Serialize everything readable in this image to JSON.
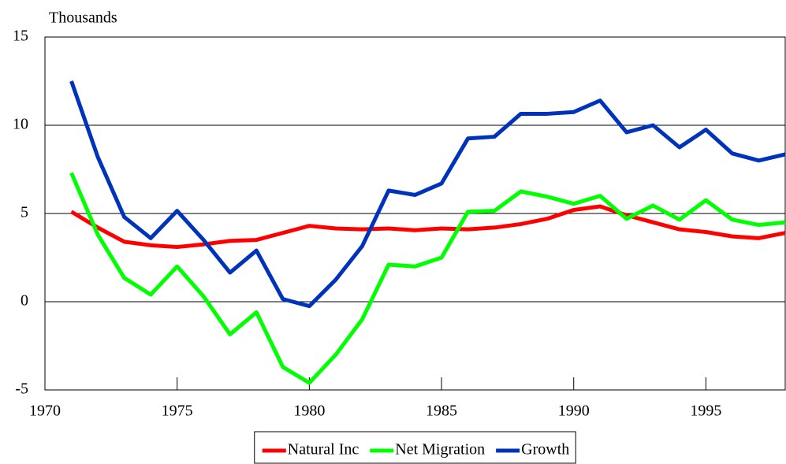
{
  "chart_data": {
    "type": "line",
    "y_label": "Thousands",
    "x": [
      1971,
      1972,
      1973,
      1974,
      1975,
      1976,
      1977,
      1978,
      1979,
      1980,
      1981,
      1982,
      1983,
      1984,
      1985,
      1986,
      1987,
      1988,
      1989,
      1990,
      1991,
      1992,
      1993,
      1994,
      1995,
      1996,
      1997,
      1998
    ],
    "series": [
      {
        "name": "Natural Inc",
        "color": "#ff0000",
        "values": [
          5.1,
          4.2,
          3.4,
          3.2,
          3.1,
          3.25,
          3.45,
          3.5,
          3.9,
          4.3,
          4.15,
          4.1,
          4.15,
          4.05,
          4.15,
          4.1,
          4.2,
          4.4,
          4.7,
          5.2,
          5.4,
          4.9,
          4.5,
          4.1,
          3.95,
          3.7,
          3.6,
          3.9
        ]
      },
      {
        "name": "Net Migration",
        "color": "#00ff00",
        "values": [
          7.3,
          3.8,
          1.35,
          0.4,
          2.0,
          0.3,
          -1.85,
          -0.6,
          -3.7,
          -4.6,
          -3.0,
          -1.0,
          2.1,
          2.0,
          2.5,
          5.1,
          5.15,
          6.25,
          5.95,
          5.55,
          6.0,
          4.7,
          5.45,
          4.65,
          5.75,
          4.65,
          4.35,
          4.5
        ]
      },
      {
        "name": "Growth",
        "color": "#0033bb",
        "values": [
          12.5,
          8.2,
          4.8,
          3.6,
          5.15,
          3.5,
          1.65,
          2.9,
          0.15,
          -0.25,
          1.25,
          3.15,
          6.3,
          6.05,
          6.7,
          9.25,
          9.35,
          10.65,
          10.65,
          10.75,
          11.4,
          9.6,
          10.0,
          8.75,
          9.75,
          8.4,
          8.0,
          8.35
        ]
      }
    ],
    "xlim": [
      1970,
      1998
    ],
    "xticks": [
      1970,
      1975,
      1980,
      1985,
      1990,
      1995
    ],
    "ylim": [
      -5,
      15
    ],
    "yticks": [
      -5,
      0,
      5,
      10,
      15
    ],
    "grid": true,
    "legend": "bottom"
  }
}
